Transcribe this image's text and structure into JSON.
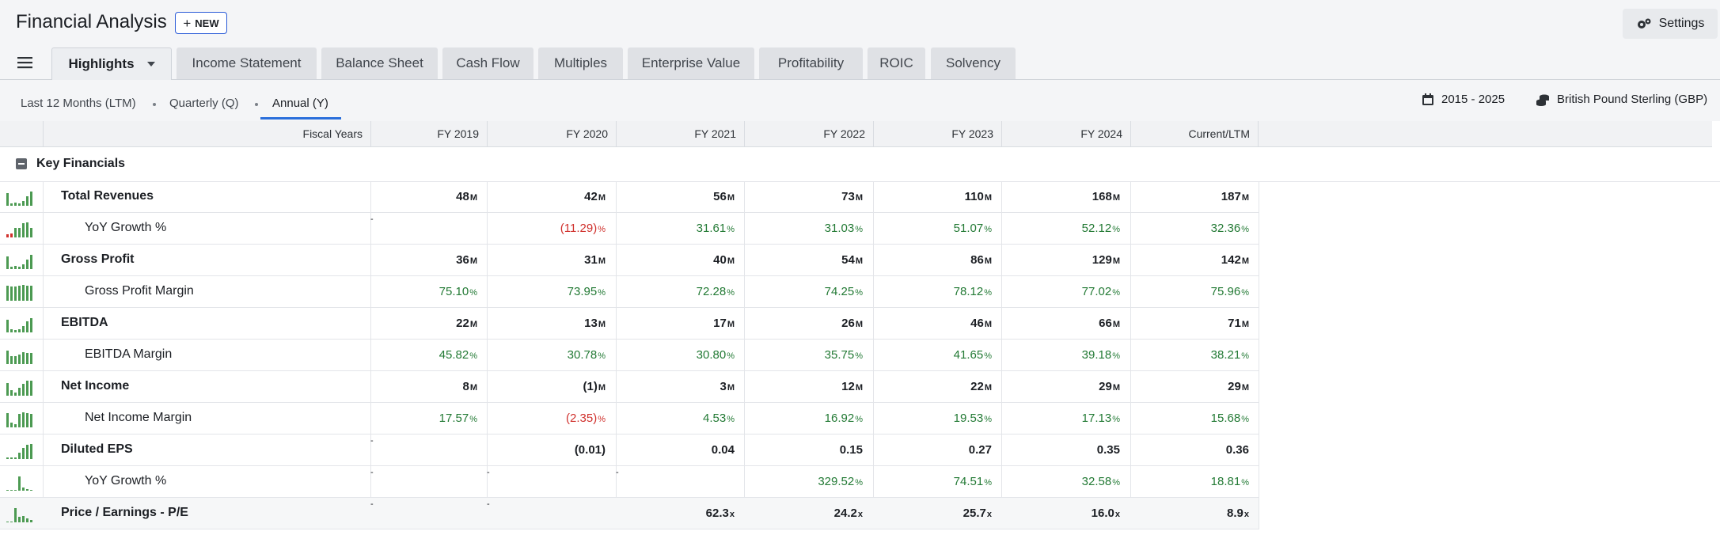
{
  "header": {
    "title": "Financial Analysis",
    "new_label": "NEW",
    "settings_label": "Settings"
  },
  "tabs": [
    {
      "label": "Highlights"
    },
    {
      "label": "Income Statement"
    },
    {
      "label": "Balance Sheet"
    },
    {
      "label": "Cash Flow"
    },
    {
      "label": "Multiples"
    },
    {
      "label": "Enterprise Value"
    },
    {
      "label": "Profitability"
    },
    {
      "label": "ROIC"
    },
    {
      "label": "Solvency"
    }
  ],
  "periods": [
    {
      "label": "Last 12 Months (LTM)"
    },
    {
      "label": "Quarterly (Q)"
    },
    {
      "label": "Annual (Y)"
    }
  ],
  "meta": {
    "date_range": "2015 - 2025",
    "currency": "British Pound Sterling (GBP)"
  },
  "columns": {
    "label_header": "Fiscal Years",
    "years": [
      "FY 2019",
      "FY 2020",
      "FY 2021",
      "FY 2022",
      "FY 2023",
      "FY 2024",
      "Current/LTM"
    ]
  },
  "section": {
    "label": "Key Financials"
  },
  "colors": {
    "positive": "#237a35",
    "negative": "#d0312d",
    "accent": "#2a6fdb",
    "spark_neg": "#d0312d",
    "spark_pos": "#4c9a52"
  },
  "rows": [
    {
      "label": "Total Revenues",
      "bold": true,
      "indent": false,
      "cells": [
        {
          "v": "48",
          "u": "M"
        },
        {
          "v": "42",
          "u": "M"
        },
        {
          "v": "56",
          "u": "M"
        },
        {
          "v": "73",
          "u": "M"
        },
        {
          "v": "110",
          "u": "M"
        },
        {
          "v": "168",
          "u": "M"
        },
        {
          "v": "187",
          "u": "M"
        }
      ]
    },
    {
      "label": "YoY Growth %",
      "bold": false,
      "indent": true,
      "cells": [
        {
          "v": "-",
          "dash": true
        },
        {
          "v": "(11.29)",
          "u": "%",
          "c": "neg"
        },
        {
          "v": "31.61",
          "u": "%",
          "c": "pos"
        },
        {
          "v": "31.03",
          "u": "%",
          "c": "pos"
        },
        {
          "v": "51.07",
          "u": "%",
          "c": "pos"
        },
        {
          "v": "52.12",
          "u": "%",
          "c": "pos"
        },
        {
          "v": "32.36",
          "u": "%",
          "c": "pos"
        }
      ]
    },
    {
      "label": "Gross Profit",
      "bold": true,
      "indent": false,
      "cells": [
        {
          "v": "36",
          "u": "M"
        },
        {
          "v": "31",
          "u": "M"
        },
        {
          "v": "40",
          "u": "M"
        },
        {
          "v": "54",
          "u": "M"
        },
        {
          "v": "86",
          "u": "M"
        },
        {
          "v": "129",
          "u": "M"
        },
        {
          "v": "142",
          "u": "M"
        }
      ]
    },
    {
      "label": "Gross Profit Margin",
      "bold": false,
      "indent": true,
      "cells": [
        {
          "v": "75.10",
          "u": "%",
          "c": "pos"
        },
        {
          "v": "73.95",
          "u": "%",
          "c": "pos"
        },
        {
          "v": "72.28",
          "u": "%",
          "c": "pos"
        },
        {
          "v": "74.25",
          "u": "%",
          "c": "pos"
        },
        {
          "v": "78.12",
          "u": "%",
          "c": "pos"
        },
        {
          "v": "77.02",
          "u": "%",
          "c": "pos"
        },
        {
          "v": "75.96",
          "u": "%",
          "c": "pos"
        }
      ]
    },
    {
      "label": "EBITDA",
      "bold": true,
      "indent": false,
      "cells": [
        {
          "v": "22",
          "u": "M"
        },
        {
          "v": "13",
          "u": "M"
        },
        {
          "v": "17",
          "u": "M"
        },
        {
          "v": "26",
          "u": "M"
        },
        {
          "v": "46",
          "u": "M"
        },
        {
          "v": "66",
          "u": "M"
        },
        {
          "v": "71",
          "u": "M"
        }
      ]
    },
    {
      "label": "EBITDA Margin",
      "bold": false,
      "indent": true,
      "cells": [
        {
          "v": "45.82",
          "u": "%",
          "c": "pos"
        },
        {
          "v": "30.78",
          "u": "%",
          "c": "pos"
        },
        {
          "v": "30.80",
          "u": "%",
          "c": "pos"
        },
        {
          "v": "35.75",
          "u": "%",
          "c": "pos"
        },
        {
          "v": "41.65",
          "u": "%",
          "c": "pos"
        },
        {
          "v": "39.18",
          "u": "%",
          "c": "pos"
        },
        {
          "v": "38.21",
          "u": "%",
          "c": "pos"
        }
      ]
    },
    {
      "label": "Net Income",
      "bold": true,
      "indent": false,
      "cells": [
        {
          "v": "8",
          "u": "M"
        },
        {
          "v": "(1)",
          "u": "M"
        },
        {
          "v": "3",
          "u": "M"
        },
        {
          "v": "12",
          "u": "M"
        },
        {
          "v": "22",
          "u": "M"
        },
        {
          "v": "29",
          "u": "M"
        },
        {
          "v": "29",
          "u": "M"
        }
      ]
    },
    {
      "label": "Net Income Margin",
      "bold": false,
      "indent": true,
      "cells": [
        {
          "v": "17.57",
          "u": "%",
          "c": "pos"
        },
        {
          "v": "(2.35)",
          "u": "%",
          "c": "neg"
        },
        {
          "v": "4.53",
          "u": "%",
          "c": "pos"
        },
        {
          "v": "16.92",
          "u": "%",
          "c": "pos"
        },
        {
          "v": "19.53",
          "u": "%",
          "c": "pos"
        },
        {
          "v": "17.13",
          "u": "%",
          "c": "pos"
        },
        {
          "v": "15.68",
          "u": "%",
          "c": "pos"
        }
      ]
    },
    {
      "label": "Diluted EPS",
      "bold": true,
      "indent": false,
      "cells": [
        {
          "v": "-",
          "dash": true
        },
        {
          "v": "(0.01)"
        },
        {
          "v": "0.04"
        },
        {
          "v": "0.15"
        },
        {
          "v": "0.27"
        },
        {
          "v": "0.35"
        },
        {
          "v": "0.36"
        }
      ]
    },
    {
      "label": "YoY Growth %",
      "bold": false,
      "indent": true,
      "cells": [
        {
          "v": "-",
          "dash": true
        },
        {
          "v": "-",
          "dash": true
        },
        {
          "v": "-",
          "dash": true
        },
        {
          "v": "329.52",
          "u": "%",
          "c": "pos"
        },
        {
          "v": "74.51",
          "u": "%",
          "c": "pos"
        },
        {
          "v": "32.58",
          "u": "%",
          "c": "pos"
        },
        {
          "v": "18.81",
          "u": "%",
          "c": "pos"
        }
      ]
    },
    {
      "label": "Price / Earnings - P/E",
      "bold": true,
      "indent": false,
      "cells": [
        {
          "v": "-",
          "dash": true
        },
        {
          "v": "-",
          "dash": true
        },
        {
          "v": "62.3",
          "u": "x"
        },
        {
          "v": "24.2",
          "u": "x"
        },
        {
          "v": "25.7",
          "u": "x"
        },
        {
          "v": "16.0",
          "u": "x"
        },
        {
          "v": "8.9",
          "u": "x"
        }
      ]
    }
  ],
  "sparks": [
    {
      "bars": [
        0.8,
        0.15,
        0.2,
        0.15,
        0.3,
        0.6,
        0.9
      ],
      "neg": []
    },
    {
      "bars": [
        0.2,
        0.25,
        0.6,
        0.6,
        0.9,
        0.95,
        0.6
      ],
      "neg": [
        0,
        1
      ]
    },
    {
      "bars": [
        0.8,
        0.15,
        0.2,
        0.15,
        0.3,
        0.6,
        0.9
      ],
      "neg": []
    },
    {
      "bars": [
        0.95,
        0.92,
        0.9,
        0.93,
        1,
        0.97,
        0.95
      ],
      "neg": []
    },
    {
      "bars": [
        0.8,
        0.2,
        0.15,
        0.2,
        0.4,
        0.7,
        0.9
      ],
      "neg": []
    },
    {
      "bars": [
        0.85,
        0.5,
        0.5,
        0.6,
        0.75,
        0.7,
        0.7
      ],
      "neg": []
    },
    {
      "bars": [
        0.8,
        0.35,
        0.2,
        0.5,
        0.75,
        0.95,
        0.95
      ],
      "neg": []
    },
    {
      "bars": [
        0.9,
        0.3,
        0.2,
        0.85,
        0.95,
        0.9,
        0.85
      ],
      "neg": []
    },
    {
      "bars": [
        0.1,
        0.1,
        0.1,
        0.4,
        0.7,
        0.9,
        0.95
      ],
      "neg": []
    },
    {
      "bars": [
        0.05,
        0,
        0,
        0.9,
        0.2,
        0.1,
        0.06
      ],
      "neg": []
    },
    {
      "bars": [
        0.05,
        0,
        0.9,
        0.35,
        0.4,
        0.25,
        0.15
      ],
      "neg": []
    }
  ]
}
